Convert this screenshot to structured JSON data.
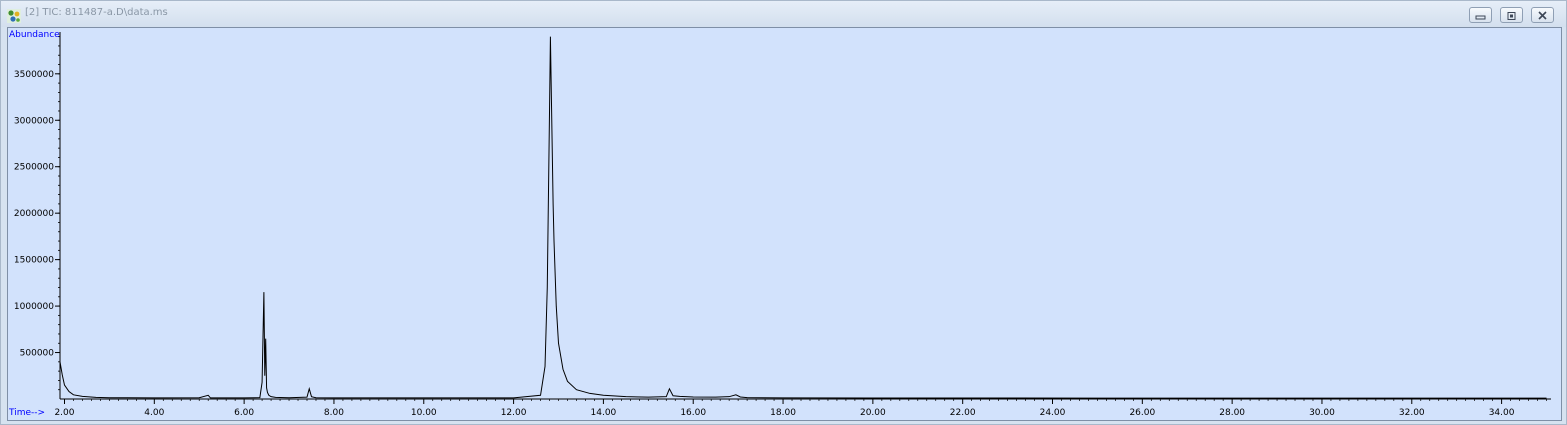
{
  "window": {
    "title": "[2] TIC: 811487-a.D\\data.ms"
  },
  "icons": {
    "app": "chromatogram-app-icon",
    "minimize": "minimize-icon",
    "restore": "restore-icon",
    "close": "close-icon"
  },
  "colors": {
    "plot_background": "#d2e2fc",
    "trace": "#000000",
    "axis_label": "#0000ff"
  },
  "chart_data": {
    "type": "line",
    "title": "",
    "xlabel": "Time-->",
    "ylabel": "Abundance",
    "xlim": [
      1.9,
      35.1
    ],
    "ylim": [
      0,
      3950000
    ],
    "xticks": [
      "2.00",
      "4.00",
      "6.00",
      "8.00",
      "10.00",
      "12.00",
      "14.00",
      "16.00",
      "18.00",
      "20.00",
      "22.00",
      "24.00",
      "26.00",
      "28.00",
      "30.00",
      "32.00",
      "34.00"
    ],
    "yticks": [
      "500000",
      "1000000",
      "1500000",
      "2000000",
      "2500000",
      "3000000",
      "3500000"
    ],
    "grid": false,
    "series": [
      {
        "name": "",
        "x": [
          1.9,
          1.95,
          2.0,
          2.1,
          2.2,
          2.4,
          2.7,
          3.0,
          4.0,
          5.0,
          5.2,
          5.25,
          5.3,
          6.0,
          6.35,
          6.4,
          6.44,
          6.46,
          6.48,
          6.5,
          6.52,
          6.55,
          6.6,
          6.7,
          7.0,
          7.4,
          7.45,
          7.5,
          7.6,
          8.0,
          10.0,
          12.0,
          12.6,
          12.7,
          12.75,
          12.8,
          12.82,
          12.85,
          12.88,
          12.9,
          12.95,
          13.0,
          13.1,
          13.2,
          13.4,
          13.7,
          14.0,
          14.5,
          15.0,
          15.4,
          15.47,
          15.55,
          15.7,
          16.0,
          16.5,
          16.8,
          16.95,
          17.05,
          17.2,
          18.0,
          20.0,
          25.0,
          30.0,
          35.0
        ],
        "y": [
          400000,
          260000,
          150000,
          80000,
          45000,
          28000,
          18000,
          14000,
          12000,
          13000,
          40000,
          12000,
          12000,
          12000,
          15000,
          180000,
          1150000,
          250000,
          650000,
          120000,
          70000,
          40000,
          25000,
          18000,
          14000,
          20000,
          110000,
          25000,
          14000,
          12000,
          12000,
          12000,
          40000,
          350000,
          1200000,
          3100000,
          3900000,
          3000000,
          2100000,
          1700000,
          1000000,
          600000,
          320000,
          190000,
          100000,
          60000,
          40000,
          25000,
          20000,
          25000,
          110000,
          35000,
          28000,
          22000,
          20000,
          25000,
          45000,
          22000,
          15000,
          12000,
          11000,
          10000,
          10000,
          10000
        ]
      }
    ]
  }
}
